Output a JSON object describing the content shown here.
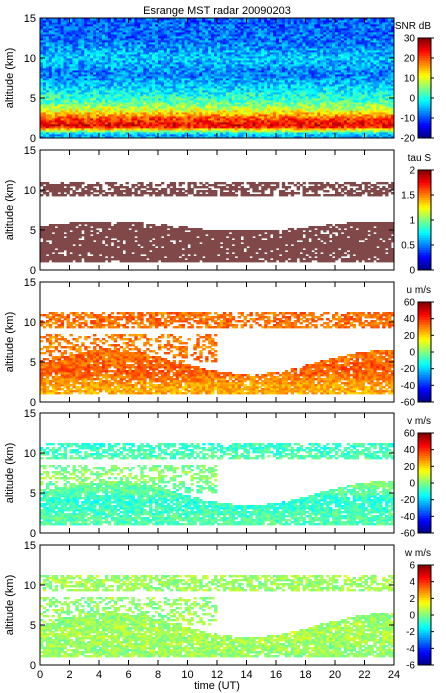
{
  "title": "Esrange MST radar 20090203",
  "xlabel": "time (UT)",
  "ylabel": "altitude (km)",
  "x_ticks": [
    "0",
    "2",
    "4",
    "6",
    "8",
    "10",
    "12",
    "14",
    "16",
    "18",
    "20",
    "22",
    "24"
  ],
  "y_ticks": [
    "0",
    "5",
    "10",
    "15"
  ],
  "chart_data": [
    {
      "type": "heatmap",
      "name": "snr",
      "colorbar_label": "SNR dB",
      "cb_ticks": [
        "30",
        "20",
        "10",
        "0",
        "-10",
        "-20"
      ],
      "vmin": -20,
      "vmax": 30,
      "xlim": [
        0,
        24
      ],
      "ylim": [
        0,
        15
      ],
      "levels_by_altitude": [
        {
          "alt": 0.5,
          "value": -5
        },
        {
          "alt": 1.5,
          "value": 25
        },
        {
          "alt": 2.5,
          "value": 20
        },
        {
          "alt": 3.5,
          "value": 10
        },
        {
          "alt": 4.5,
          "value": 3
        },
        {
          "alt": 6,
          "value": -2
        },
        {
          "alt": 8,
          "value": -8
        },
        {
          "alt": 10,
          "value": -4
        },
        {
          "alt": 12,
          "value": -8
        },
        {
          "alt": 14,
          "value": -9
        }
      ]
    },
    {
      "type": "heatmap",
      "name": "tau",
      "colorbar_label": "tau S",
      "cb_ticks": [
        "2",
        "1.5",
        "1",
        "0.5",
        "0"
      ],
      "vmin": 0,
      "vmax": 2,
      "xlim": [
        0,
        24
      ],
      "ylim": [
        0,
        15
      ],
      "typical_value": 2,
      "echo_layers_km": [
        [
          1,
          5.5
        ],
        [
          9,
          11
        ]
      ]
    },
    {
      "type": "heatmap",
      "name": "u",
      "colorbar_label": "u m/s",
      "cb_ticks": [
        "60",
        "40",
        "20",
        "0",
        "-20",
        "-40",
        "-60"
      ],
      "vmin": -60,
      "vmax": 60,
      "xlim": [
        0,
        24
      ],
      "ylim": [
        0,
        15
      ],
      "levels_by_altitude": [
        {
          "alt": 2,
          "value": 25
        },
        {
          "alt": 4,
          "value": 35
        },
        {
          "alt": 7,
          "value": 30
        },
        {
          "alt": 10.5,
          "value": 32
        }
      ]
    },
    {
      "type": "heatmap",
      "name": "v",
      "colorbar_label": "v m/s",
      "cb_ticks": [
        "60",
        "40",
        "20",
        "0",
        "-20",
        "-40",
        "-60"
      ],
      "vmin": -60,
      "vmax": 60,
      "xlim": [
        0,
        24
      ],
      "ylim": [
        0,
        15
      ],
      "levels_by_altitude": [
        {
          "alt": 2,
          "value": -5
        },
        {
          "alt": 4,
          "value": -10
        },
        {
          "alt": 7,
          "value": 3
        },
        {
          "alt": 10.5,
          "value": -8
        }
      ]
    },
    {
      "type": "heatmap",
      "name": "w",
      "colorbar_label": "w m/s",
      "cb_ticks": [
        "6",
        "4",
        "2",
        "0",
        "-2",
        "-4",
        "-6"
      ],
      "vmin": -6,
      "vmax": 6,
      "xlim": [
        0,
        24
      ],
      "ylim": [
        0,
        15
      ],
      "levels_by_altitude": [
        {
          "alt": 2,
          "value": 0.3
        },
        {
          "alt": 4,
          "value": 0.5
        },
        {
          "alt": 7,
          "value": 0.2
        },
        {
          "alt": 10.5,
          "value": 0.4
        }
      ]
    }
  ]
}
